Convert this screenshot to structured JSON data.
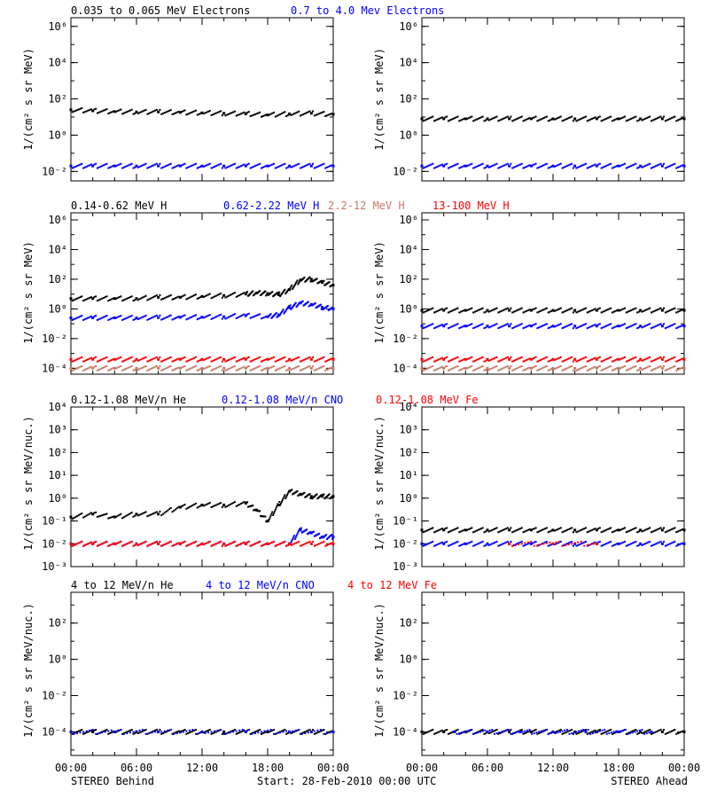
{
  "chart_data": [
    {
      "type": "scatter",
      "title_legend": [
        "0.035 to 0.065 MeV Electrons",
        "0.7 to 4.0 Mev Electrons"
      ],
      "legend_colors": [
        "#000000",
        "#0000ff"
      ],
      "ylabel": "1/(cm² s sr MeV)",
      "y_scale": "log",
      "ylim": [
        0.003,
        3000000
      ],
      "y_ticks": [
        {
          "label": "10⁻²",
          "value": 0.01
        },
        {
          "label": "10⁰",
          "value": 1
        },
        {
          "label": "10²",
          "value": 100
        },
        {
          "label": "10⁴",
          "value": 10000
        },
        {
          "label": "10⁶",
          "value": 1000000
        }
      ],
      "xlim_hours": [
        0,
        24
      ],
      "x_ticks": [
        "00:00",
        "06:00",
        "12:00",
        "18:00",
        "00:00"
      ],
      "panels": [
        {
          "spacecraft": "STEREO Behind",
          "series": [
            {
              "color": "#000000",
              "x": [
                0,
                2,
                4,
                6,
                8,
                10,
                12,
                14,
                16,
                18,
                20,
                22,
                24
              ],
              "y": [
                25,
                22,
                20,
                19,
                19,
                18,
                17,
                16,
                15,
                13,
                15,
                16,
                14
              ]
            },
            {
              "color": "#0000ff",
              "x": [
                0,
                2,
                4,
                6,
                8,
                10,
                12,
                14,
                16,
                18,
                20,
                22,
                24
              ],
              "y": [
                0.02,
                0.02,
                0.02,
                0.02,
                0.02,
                0.02,
                0.02,
                0.02,
                0.02,
                0.02,
                0.02,
                0.02,
                0.02
              ]
            }
          ]
        },
        {
          "spacecraft": "STEREO Ahead",
          "series": [
            {
              "color": "#000000",
              "x": [
                0,
                2,
                4,
                6,
                8,
                10,
                12,
                14,
                16,
                18,
                20,
                22,
                24
              ],
              "y": [
                8,
                8,
                8,
                8,
                8,
                8,
                8,
                8,
                8,
                8,
                8,
                8,
                8
              ]
            },
            {
              "color": "#0000ff",
              "x": [
                0,
                2,
                4,
                6,
                8,
                10,
                12,
                14,
                16,
                18,
                20,
                22,
                24
              ],
              "y": [
                0.02,
                0.02,
                0.02,
                0.02,
                0.02,
                0.02,
                0.02,
                0.02,
                0.02,
                0.02,
                0.02,
                0.02,
                0.02
              ]
            }
          ]
        }
      ]
    },
    {
      "type": "scatter",
      "title_legend": [
        "0.14-0.62 MeV H",
        "0.62-2.22 MeV H",
        "2.2-12 MeV H",
        "13-100 MeV H"
      ],
      "legend_colors": [
        "#000000",
        "#0000ff",
        "#c87a6a",
        "#ff0000"
      ],
      "ylabel": "1/(cm² s sr MeV)",
      "y_scale": "log",
      "ylim": [
        4e-05,
        3000000
      ],
      "y_ticks": [
        {
          "label": "10⁻⁴",
          "value": 0.0001
        },
        {
          "label": "10⁻²",
          "value": 0.01
        },
        {
          "label": "10⁰",
          "value": 1
        },
        {
          "label": "10²",
          "value": 100
        },
        {
          "label": "10⁴",
          "value": 10000
        },
        {
          "label": "10⁶",
          "value": 1000000
        }
      ],
      "xlim_hours": [
        0,
        24
      ],
      "x_ticks": [
        "00:00",
        "06:00",
        "12:00",
        "18:00",
        "00:00"
      ],
      "panels": [
        {
          "spacecraft": "STEREO Behind",
          "series": [
            {
              "color": "#000000",
              "x": [
                0,
                2,
                4,
                6,
                8,
                10,
                12,
                14,
                16,
                17,
                18,
                19,
                20,
                21,
                22,
                23,
                24
              ],
              "y": [
                5,
                5,
                5,
                5,
                6,
                6,
                7,
                8,
                10,
                12,
                11,
                9,
                20,
                90,
                100,
                60,
                40
              ]
            },
            {
              "color": "#0000ff",
              "x": [
                0,
                2,
                4,
                6,
                8,
                10,
                12,
                14,
                16,
                18,
                19,
                20,
                21,
                22,
                23,
                24
              ],
              "y": [
                0.25,
                0.25,
                0.25,
                0.25,
                0.26,
                0.27,
                0.28,
                0.3,
                0.35,
                0.3,
                0.4,
                1.2,
                2.5,
                2,
                1.3,
                1
              ]
            },
            {
              "color": "#c87a6a",
              "x": [
                0,
                2,
                4,
                6,
                8,
                10,
                12,
                14,
                16,
                18,
                20,
                22,
                24
              ],
              "y": [
                0.0001,
                0.0001,
                0.0001,
                0.0001,
                0.0001,
                0.0001,
                0.0001,
                0.0001,
                0.0001,
                0.0001,
                0.0001,
                0.0001,
                0.0001
              ]
            },
            {
              "color": "#ff0000",
              "x": [
                0,
                2,
                4,
                6,
                8,
                10,
                12,
                14,
                16,
                18,
                20,
                22,
                24
              ],
              "y": [
                0.0004,
                0.0004,
                0.0004,
                0.0004,
                0.0004,
                0.0004,
                0.0004,
                0.0004,
                0.0004,
                0.0004,
                0.0004,
                0.0004,
                0.0004
              ]
            }
          ]
        },
        {
          "spacecraft": "STEREO Ahead",
          "series": [
            {
              "color": "#000000",
              "x": [
                0,
                2,
                4,
                6,
                8,
                10,
                12,
                14,
                16,
                18,
                20,
                22,
                24
              ],
              "y": [
                0.8,
                0.8,
                0.8,
                0.8,
                0.8,
                0.8,
                0.8,
                0.8,
                0.8,
                0.8,
                0.8,
                0.8,
                0.8
              ]
            },
            {
              "color": "#0000ff",
              "x": [
                0,
                2,
                4,
                6,
                8,
                10,
                12,
                14,
                16,
                18,
                20,
                22,
                24
              ],
              "y": [
                0.07,
                0.07,
                0.07,
                0.07,
                0.07,
                0.07,
                0.07,
                0.07,
                0.07,
                0.07,
                0.07,
                0.07,
                0.07
              ]
            },
            {
              "color": "#c87a6a",
              "x": [
                0,
                2,
                4,
                6,
                8,
                10,
                12,
                14,
                16,
                18,
                20,
                22,
                24
              ],
              "y": [
                0.0001,
                0.0001,
                0.0001,
                0.0001,
                0.0001,
                0.0001,
                0.0001,
                0.0001,
                0.0001,
                0.0001,
                0.0001,
                0.0001,
                0.0001
              ]
            },
            {
              "color": "#ff0000",
              "x": [
                0,
                2,
                4,
                6,
                8,
                10,
                12,
                14,
                16,
                18,
                20,
                22,
                24
              ],
              "y": [
                0.0004,
                0.0004,
                0.0004,
                0.0004,
                0.0004,
                0.0004,
                0.0004,
                0.0004,
                0.0004,
                0.0004,
                0.0004,
                0.0004,
                0.0004
              ]
            }
          ]
        }
      ]
    },
    {
      "type": "scatter",
      "title_legend": [
        "0.12-1.08 MeV/n He",
        "0.12-1.08 MeV/n CNO",
        "0.12-1.08 MeV Fe"
      ],
      "legend_colors": [
        "#000000",
        "#0000ff",
        "#ff0000"
      ],
      "ylabel": "1/(cm² s sr MeV/nuc.)",
      "y_scale": "log",
      "ylim": [
        0.001,
        10000
      ],
      "y_ticks": [
        {
          "label": "10⁻³",
          "value": 0.001
        },
        {
          "label": "10⁻²",
          "value": 0.01
        },
        {
          "label": "10⁻¹",
          "value": 0.1
        },
        {
          "label": "10⁰",
          "value": 1
        },
        {
          "label": "10¹",
          "value": 10
        },
        {
          "label": "10²",
          "value": 100
        },
        {
          "label": "10³",
          "value": 1000
        },
        {
          "label": "10⁴",
          "value": 10000
        }
      ],
      "xlim_hours": [
        0,
        24
      ],
      "x_ticks": [
        "00:00",
        "06:00",
        "12:00",
        "18:00",
        "00:00"
      ],
      "panels": [
        {
          "spacecraft": "STEREO Behind",
          "series": [
            {
              "color": "#000000",
              "x": [
                0,
                2,
                4,
                6,
                8,
                10,
                12,
                14,
                16,
                17,
                18,
                19,
                20,
                21,
                22,
                23,
                24
              ],
              "y": [
                0.15,
                0.2,
                0.15,
                0.2,
                0.2,
                0.4,
                0.5,
                0.5,
                0.6,
                0.3,
                0.1,
                0.5,
                2,
                1.5,
                1.2,
                1.2,
                1.2
              ]
            },
            {
              "color": "#0000ff",
              "x": [
                0,
                2,
                4,
                6,
                8,
                10,
                12,
                14,
                16,
                18,
                20,
                21,
                22,
                23,
                24
              ],
              "y": [
                0.01,
                0.01,
                0.01,
                0.01,
                0.01,
                0.01,
                0.01,
                0.01,
                0.01,
                0.01,
                0.01,
                0.04,
                0.03,
                0.02,
                0.02
              ]
            },
            {
              "color": "#ff0000",
              "x": [
                0,
                2,
                4,
                6,
                8,
                10,
                12,
                14,
                16,
                18,
                20,
                22,
                24
              ],
              "y": [
                0.01,
                0.01,
                0.01,
                0.01,
                0.01,
                0.01,
                0.01,
                0.01,
                0.01,
                0.01,
                0.01,
                0.01,
                0.01
              ]
            }
          ]
        },
        {
          "spacecraft": "STEREO Ahead",
          "series": [
            {
              "color": "#000000",
              "x": [
                0,
                2,
                4,
                6,
                8,
                10,
                12,
                14,
                16,
                18,
                20,
                22,
                24
              ],
              "y": [
                0.04,
                0.04,
                0.04,
                0.04,
                0.04,
                0.04,
                0.04,
                0.04,
                0.04,
                0.04,
                0.04,
                0.04,
                0.04
              ]
            },
            {
              "color": "#0000ff",
              "x": [
                0,
                2,
                4,
                6,
                8,
                10,
                12,
                14,
                16,
                18,
                20,
                22,
                24
              ],
              "y": [
                0.01,
                0.01,
                0.01,
                0.01,
                0.01,
                0.01,
                0.01,
                0.01,
                0.01,
                0.01,
                0.01,
                0.01,
                0.01
              ]
            },
            {
              "color": "#ff0000",
              "x": [
                8,
                12,
                16
              ],
              "y": [
                0.01,
                0.01,
                0.01
              ]
            }
          ]
        }
      ]
    },
    {
      "type": "scatter",
      "title_legend": [
        "4 to 12 MeV/n He",
        "4 to 12 MeV/n CNO",
        "4 to 12 MeV Fe"
      ],
      "legend_colors": [
        "#000000",
        "#0000ff",
        "#ff0000"
      ],
      "ylabel": "1/(cm² s sr MeV/nuc.)",
      "y_scale": "log",
      "ylim": [
        5e-06,
        5000
      ],
      "y_ticks": [
        {
          "label": "10⁻⁴",
          "value": 0.0001
        },
        {
          "label": "10⁻²",
          "value": 0.01
        },
        {
          "label": "10⁰",
          "value": 1
        },
        {
          "label": "10²",
          "value": 100
        }
      ],
      "xlim_hours": [
        0,
        24
      ],
      "x_ticks": [
        "00:00",
        "06:00",
        "12:00",
        "18:00",
        "00:00"
      ],
      "panels": [
        {
          "spacecraft": "STEREO Behind",
          "series": [
            {
              "color": "#000000",
              "x": [
                0,
                2,
                4,
                6,
                8,
                10,
                12,
                14,
                16,
                18,
                20,
                22,
                24
              ],
              "y": [
                0.0001,
                0.0001,
                0.0001,
                0.0001,
                0.0001,
                0.0001,
                0.0001,
                0.0001,
                0.0001,
                0.0001,
                0.0001,
                0.0001,
                0.0001
              ]
            },
            {
              "color": "#0000ff",
              "x": [
                0,
                4,
                8,
                12,
                16,
                20,
                24
              ],
              "y": [
                0.0001,
                0.0001,
                0.0001,
                0.0001,
                0.0001,
                0.0001,
                0.0001
              ]
            }
          ]
        },
        {
          "spacecraft": "STEREO Ahead",
          "series": [
            {
              "color": "#000000",
              "x": [
                0,
                2,
                4,
                6,
                8,
                10,
                12,
                14,
                16,
                18,
                20,
                22,
                24
              ],
              "y": [
                0.0001,
                0.0001,
                0.0001,
                0.0001,
                0.0001,
                0.0001,
                0.0001,
                0.0001,
                0.0001,
                0.0001,
                0.0001,
                0.0001,
                0.0001
              ]
            },
            {
              "color": "#0000ff",
              "x": [
                3,
                6,
                9,
                12,
                15,
                18,
                21
              ],
              "y": [
                0.0001,
                0.0001,
                0.0001,
                0.0001,
                0.0001,
                0.0001,
                0.0001
              ]
            }
          ]
        }
      ]
    }
  ],
  "footer": {
    "left": "STEREO Behind",
    "center": "Start: 28-Feb-2010 00:00 UTC",
    "right": "STEREO Ahead"
  }
}
